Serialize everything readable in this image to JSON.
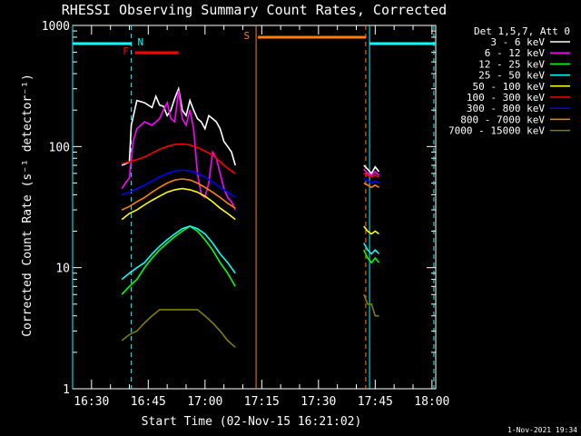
{
  "window": {
    "title": "RHESSI Observing Summary Count Rates, Corrected",
    "timestamp": "1-Nov-2021 19:34"
  },
  "chart_data": {
    "type": "line",
    "title": "RHESSI Observing Summary Count Rates, Corrected",
    "xlabel": "Start Time (02-Nov-15 16:21:02)",
    "ylabel": "Corrected Count Rate (s⁻¹ detector⁻¹)",
    "yscale": "log",
    "xlim_minutes": [
      985,
      1081
    ],
    "ylim": [
      1,
      1000
    ],
    "x_ticks": [
      "16:30",
      "16:45",
      "17:00",
      "17:15",
      "17:30",
      "17:45",
      "18:00"
    ],
    "x_tick_minutes": [
      990,
      1005,
      1020,
      1035,
      1050,
      1065,
      1080
    ],
    "y_ticks": [
      "1",
      "10",
      "100",
      "1000"
    ],
    "y_tick_values": [
      1,
      10,
      100,
      1000
    ],
    "legend_title": "Det 1,5,7, Att 0",
    "legend_position": "top-right",
    "series": [
      {
        "name": "3 - 6 keV",
        "color": "#ffffff",
        "x": [
          998,
          999,
          1000,
          1000.5,
          1002,
          1004,
          1006,
          1007,
          1008,
          1009,
          1010,
          1011,
          1012,
          1013,
          1014,
          1015,
          1016,
          1017,
          1018,
          1019,
          1020,
          1021,
          1022,
          1023,
          1024,
          1025,
          1026,
          1027,
          1028
        ],
        "y": [
          70,
          72,
          75,
          150,
          240,
          230,
          210,
          260,
          220,
          215,
          180,
          200,
          250,
          300,
          200,
          180,
          240,
          200,
          170,
          160,
          140,
          180,
          170,
          160,
          140,
          110,
          100,
          90,
          70
        ]
      },
      {
        "name": "6 - 12 keV",
        "color": "#ff00ff",
        "x": [
          998,
          999,
          1000,
          1001,
          1002,
          1004,
          1006,
          1008,
          1009,
          1010,
          1011,
          1012,
          1013,
          1014,
          1015,
          1016,
          1017,
          1018,
          1019,
          1020,
          1021,
          1022,
          1023,
          1024,
          1025,
          1026,
          1027,
          1028
        ],
        "y": [
          45,
          50,
          55,
          110,
          140,
          160,
          150,
          170,
          200,
          230,
          170,
          160,
          290,
          170,
          150,
          200,
          140,
          60,
          40,
          38,
          50,
          90,
          80,
          60,
          45,
          38,
          35,
          30
        ]
      },
      {
        "name": "12 - 25 keV",
        "color": "#00ff00",
        "x": [
          998,
          1000,
          1002,
          1004,
          1006,
          1008,
          1010,
          1012,
          1014,
          1016,
          1018,
          1020,
          1022,
          1024,
          1026,
          1028
        ],
        "y": [
          6,
          7,
          8,
          10,
          12,
          14,
          16,
          18,
          20,
          22,
          20,
          17,
          14,
          11,
          9,
          7
        ]
      },
      {
        "name": "25 - 50 keV",
        "color": "#00ffff",
        "x": [
          998,
          1000,
          1002,
          1004,
          1006,
          1008,
          1010,
          1012,
          1014,
          1016,
          1018,
          1020,
          1022,
          1024,
          1026,
          1028
        ],
        "y": [
          8,
          9,
          10,
          11,
          13,
          15,
          17,
          19,
          21,
          22,
          21,
          19,
          16,
          13,
          11,
          9
        ]
      },
      {
        "name": "50 - 100 keV",
        "color": "#ffff00",
        "x": [
          998,
          1000,
          1002,
          1004,
          1006,
          1008,
          1010,
          1012,
          1014,
          1016,
          1018,
          1020,
          1022,
          1024,
          1026,
          1028
        ],
        "y": [
          25,
          28,
          30,
          33,
          36,
          39,
          42,
          44,
          45,
          44,
          42,
          39,
          35,
          31,
          28,
          25
        ]
      },
      {
        "name": "100 - 300 keV",
        "color": "#ff0000",
        "x": [
          998,
          1000,
          1002,
          1004,
          1006,
          1008,
          1010,
          1012,
          1014,
          1016,
          1018,
          1020,
          1022,
          1024,
          1026,
          1028
        ],
        "y": [
          72,
          75,
          78,
          82,
          88,
          95,
          100,
          104,
          105,
          103,
          98,
          92,
          85,
          75,
          66,
          60
        ]
      },
      {
        "name": "300 - 800 keV",
        "color": "#0000ff",
        "x": [
          998,
          1000,
          1002,
          1004,
          1006,
          1008,
          1010,
          1012,
          1014,
          1016,
          1018,
          1020,
          1022,
          1024,
          1026,
          1028
        ],
        "y": [
          40,
          42,
          45,
          48,
          52,
          56,
          60,
          63,
          64,
          63,
          60,
          56,
          51,
          46,
          42,
          38
        ]
      },
      {
        "name": "800 - 7000 keV",
        "color": "#ff8000",
        "x": [
          998,
          1000,
          1002,
          1004,
          1006,
          1008,
          1010,
          1012,
          1014,
          1016,
          1018,
          1020,
          1022,
          1024,
          1026,
          1028
        ],
        "y": [
          30,
          32,
          35,
          38,
          42,
          46,
          50,
          53,
          54,
          53,
          50,
          46,
          42,
          38,
          34,
          31
        ]
      },
      {
        "name": "7000 - 15000 keV",
        "color": "#808000",
        "x": [
          998,
          1000,
          1002,
          1004,
          1006,
          1008,
          1010,
          1012,
          1014,
          1016,
          1018,
          1020,
          1022,
          1024,
          1026,
          1028
        ],
        "y": [
          2.5,
          2.8,
          3,
          3.5,
          4,
          4.5,
          4.5,
          4.5,
          4.5,
          4.5,
          4.5,
          4,
          3.5,
          3,
          2.5,
          2.2
        ]
      }
    ],
    "late_segment": {
      "x": [
        1062,
        1063,
        1064,
        1065,
        1066
      ],
      "series_y": {
        "3 - 6 keV": [
          70,
          65,
          60,
          68,
          62
        ],
        "6 - 12 keV": [
          65,
          60,
          58,
          62,
          58
        ],
        "12 - 25 keV": [
          14,
          12,
          11,
          12,
          11
        ],
        "25 - 50 keV": [
          16,
          14,
          13,
          14,
          13
        ],
        "50 - 100 keV": [
          22,
          20,
          19,
          20,
          19
        ],
        "100 - 300 keV": [
          60,
          58,
          56,
          58,
          56
        ],
        "300 - 800 keV": [
          55,
          52,
          50,
          52,
          50
        ],
        "800 - 7000 keV": [
          50,
          48,
          46,
          48,
          46
        ],
        "7000 - 15000 keV": [
          6,
          5,
          5,
          4,
          4
        ]
      }
    },
    "flags": {
      "N": {
        "label": "N",
        "color": "#00ffff",
        "spans": [
          [
            985,
            1000.5
          ],
          [
            1063.5,
            1081
          ]
        ],
        "marker_minute": 1001.5
      },
      "F": {
        "label": "F",
        "color": "#ff0000",
        "spans": [
          [
            1001.5,
            1013
          ]
        ],
        "marker_minute": 1000
      },
      "S": {
        "label": "S",
        "color": "#ff8000",
        "spans": [
          [
            1034,
            1062.5
          ]
        ],
        "marker_minute": 1032
      }
    },
    "vertical_lines": [
      {
        "minute": 985,
        "color": "#00ffff",
        "style": "solid"
      },
      {
        "minute": 1000.5,
        "color": "#00ffff",
        "style": "dashed"
      },
      {
        "minute": 1033.5,
        "color": "#ff8000",
        "style": "solid"
      },
      {
        "minute": 1062.5,
        "color": "#ff8000",
        "style": "dashed"
      },
      {
        "minute": 1063.5,
        "color": "#00ffff",
        "style": "solid"
      },
      {
        "minute": 1080.5,
        "color": "#00ffff",
        "style": "dashed"
      }
    ]
  }
}
